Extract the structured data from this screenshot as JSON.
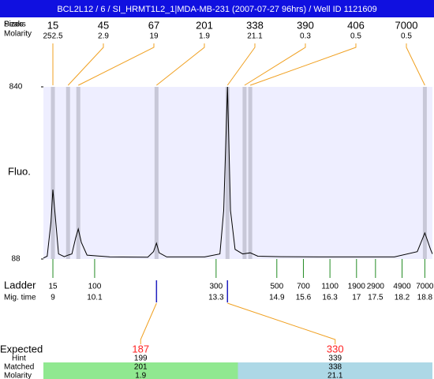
{
  "title": "BCL2L12 / 6 / SI_HRMT1L2_1|MDA-MB-231 (2007-07-27 96hrs) / Well ID 1121609",
  "peaks": {
    "labels": [
      "Peaks",
      "Sizes",
      "Molarity"
    ],
    "sizes": [
      15,
      45,
      67,
      201,
      338,
      390,
      406,
      7000
    ],
    "molarity": [
      252.5,
      2.9,
      19,
      1.9,
      21.1,
      0.3,
      0.5,
      0.5
    ],
    "times": [
      9.0,
      9.4,
      9.67,
      11.73,
      13.6,
      14.05,
      14.2,
      18.8
    ]
  },
  "chart_data": {
    "type": "line",
    "y_label": "Fluo.",
    "color": "#000000",
    "x": [
      8.75,
      8.85,
      8.95,
      9.0,
      9.05,
      9.15,
      9.3,
      9.4,
      9.5,
      9.6,
      9.67,
      9.75,
      9.9,
      10.5,
      11.5,
      11.65,
      11.73,
      11.8,
      12.0,
      13.0,
      13.4,
      13.5,
      13.6,
      13.68,
      13.8,
      14.0,
      14.2,
      14.4,
      15.0,
      16.0,
      18.0,
      18.6,
      18.8,
      18.95,
      19.0
    ],
    "values": [
      92,
      100,
      250,
      391,
      300,
      110,
      98,
      105,
      110,
      180,
      219,
      160,
      105,
      97,
      96,
      120,
      157,
      115,
      97,
      97,
      110,
      300,
      840,
      300,
      130,
      110,
      115,
      100,
      98,
      97,
      97,
      120,
      202,
      130,
      110
    ],
    "xlim": [
      8.75,
      19.0
    ],
    "ylim": [
      88,
      840
    ],
    "yticks": [
      88,
      840
    ]
  },
  "ladder": {
    "label": "Ladder",
    "time_label": "Mig. time",
    "sizes": [
      15,
      100,
      300,
      500,
      700,
      1100,
      1900,
      2900,
      4900,
      7000
    ],
    "times": [
      9,
      10.1,
      13.3,
      14.9,
      15.6,
      16.3,
      17,
      17.5,
      18.2,
      18.8
    ]
  },
  "expected": {
    "labels": [
      "Expected",
      "Hint",
      "Matched",
      "Molarity"
    ],
    "expected": [
      187,
      330
    ],
    "hint": [
      199,
      339
    ],
    "matched": [
      201,
      338
    ],
    "molarity": [
      1.9,
      21.1
    ]
  }
}
